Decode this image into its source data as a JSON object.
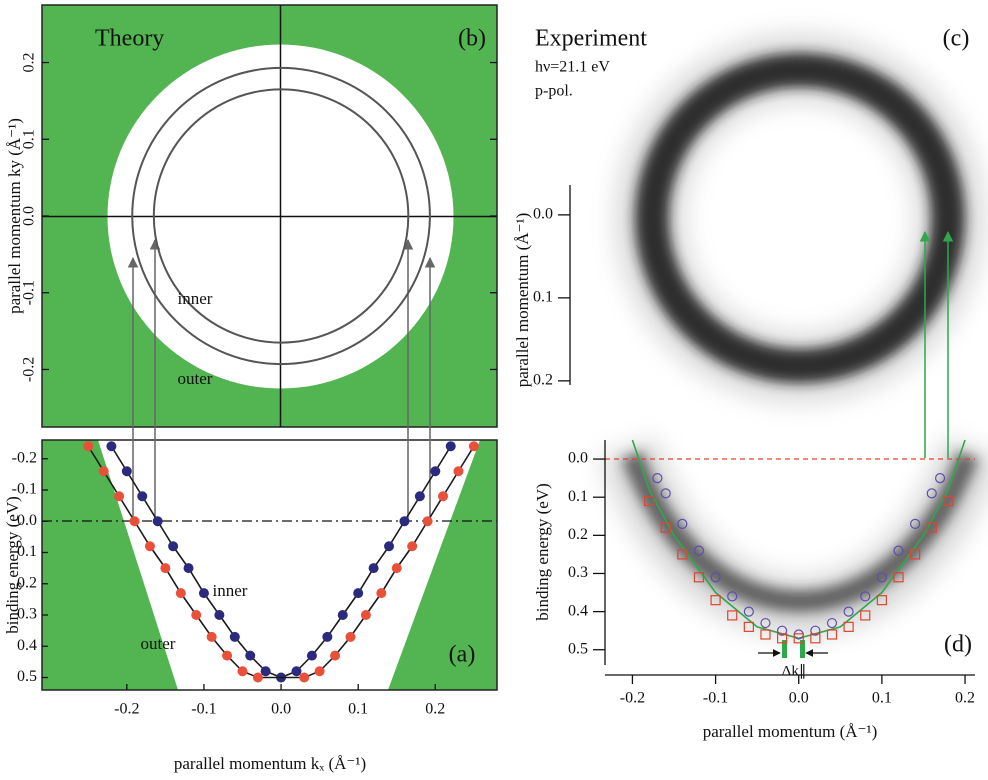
{
  "chart_data": [
    {
      "type": "circles",
      "panel": "(b)",
      "title": "Theory",
      "ylabel": "parallel momentum ky (Å⁻¹)",
      "xlim": [
        -0.31,
        0.28
      ],
      "ylim": [
        -0.275,
        0.275
      ],
      "yticks": [
        -0.2,
        -0.1,
        {
          "value": 0,
          "label": "0.0"
        },
        0.1,
        0.2
      ],
      "series": [
        {
          "name": "inner",
          "color": "#555555",
          "radius": 0.165
        },
        {
          "name": "outer",
          "color": "#555555",
          "radius": 0.193
        }
      ]
    },
    {
      "type": "scatter",
      "panel": "(a)",
      "xlabel": "parallel momentum kₓ (Å⁻¹)",
      "ylabel": "binding energy (eV)",
      "xlim": [
        -0.31,
        0.28
      ],
      "ylim": [
        -0.26,
        0.54
      ],
      "y_inverted": true,
      "xticks": [
        -0.2,
        -0.1,
        {
          "value": 0,
          "label": "0.0"
        },
        0.1,
        0.2
      ],
      "yticks": [
        -0.2,
        -0.1,
        {
          "value": 0,
          "label": "0.0"
        },
        0.1,
        0.2,
        0.3,
        0.4,
        0.5
      ],
      "series": [
        {
          "name": "inner",
          "color": "#2b2a7e",
          "marker": "dot",
          "line_color": "#1a1a1a",
          "x": [
            -0.22,
            -0.2,
            -0.18,
            -0.16,
            -0.14,
            -0.12,
            -0.1,
            -0.08,
            -0.06,
            -0.04,
            -0.02,
            0,
            0.02,
            0.04,
            0.06,
            0.08,
            0.1,
            0.12,
            0.14,
            0.16,
            0.18,
            0.2,
            0.22
          ],
          "values": [
            -0.24,
            -0.16,
            -0.08,
            0,
            0.08,
            0.15,
            0.23,
            0.3,
            0.37,
            0.43,
            0.48,
            0.5,
            0.48,
            0.43,
            0.37,
            0.3,
            0.23,
            0.15,
            0.08,
            0,
            -0.08,
            -0.16,
            -0.24
          ]
        },
        {
          "name": "outer",
          "color": "#e8503a",
          "marker": "dot",
          "line_color": "#1a1a1a",
          "x": [
            -0.25,
            -0.23,
            -0.21,
            -0.19,
            -0.17,
            -0.15,
            -0.13,
            -0.11,
            -0.09,
            -0.07,
            -0.05,
            -0.03,
            0.03,
            0.05,
            0.07,
            0.09,
            0.11,
            0.13,
            0.15,
            0.17,
            0.19,
            0.21,
            0.23,
            0.25
          ],
          "values": [
            -0.24,
            -0.16,
            -0.08,
            0,
            0.08,
            0.15,
            0.23,
            0.3,
            0.37,
            0.43,
            0.48,
            0.5,
            0.5,
            0.48,
            0.43,
            0.37,
            0.3,
            0.23,
            0.15,
            0.08,
            0,
            -0.08,
            -0.16,
            -0.24
          ]
        }
      ]
    },
    {
      "type": "image",
      "panel": "(c)",
      "title": "Experiment",
      "subtitle": "hν=21.1 eV",
      "note": "p-pol.",
      "ylabel": "parallel momentum (Å⁻¹)",
      "ylim": [
        -0.036,
        0.205
      ],
      "y_inverted": true,
      "yticks": [
        {
          "value": 0,
          "label": "0.0"
        },
        0.1,
        0.2
      ]
    },
    {
      "type": "scatter",
      "panel": "(d)",
      "xlabel": "parallel momentum (Å⁻¹)",
      "ylabel": "binding energy (eV)",
      "annotation": "Δk∥",
      "xlim": [
        -0.233,
        0.212
      ],
      "ylim": [
        -0.05,
        0.54
      ],
      "y_inverted": true,
      "xticks": [
        -0.2,
        -0.1,
        {
          "value": 0,
          "label": "0.0"
        },
        0.1,
        0.2
      ],
      "yticks": [
        {
          "value": 0,
          "label": "0.0"
        },
        0.1,
        0.2,
        0.3,
        0.4,
        0.5
      ],
      "series": [
        {
          "color": "#2ea84a",
          "marker": "line",
          "x": [
            -0.2,
            -0.18,
            -0.15,
            -0.1,
            -0.05,
            0,
            0.05,
            0.1,
            0.15,
            0.18,
            0.2
          ],
          "values": [
            -0.05,
            0.08,
            0.2,
            0.35,
            0.44,
            0.47,
            0.44,
            0.35,
            0.2,
            0.08,
            -0.05
          ]
        },
        {
          "color": "#5a4fb0",
          "marker": "circle",
          "x": [
            -0.17,
            -0.16,
            -0.14,
            -0.12,
            -0.1,
            -0.08,
            -0.06,
            -0.04,
            -0.02,
            0,
            0.02,
            0.04,
            0.06,
            0.08,
            0.1,
            0.12,
            0.14,
            0.16,
            0.17
          ],
          "values": [
            0.05,
            0.09,
            0.17,
            0.24,
            0.31,
            0.36,
            0.4,
            0.43,
            0.45,
            0.46,
            0.45,
            0.43,
            0.4,
            0.36,
            0.31,
            0.24,
            0.17,
            0.09,
            0.05
          ]
        },
        {
          "color": "#e0442e",
          "marker": "square",
          "x": [
            -0.18,
            -0.16,
            -0.14,
            -0.12,
            -0.1,
            -0.08,
            -0.06,
            -0.04,
            -0.02,
            0,
            0.02,
            0.04,
            0.06,
            0.08,
            0.1,
            0.12,
            0.14,
            0.16,
            0.18
          ],
          "values": [
            0.11,
            0.18,
            0.25,
            0.31,
            0.37,
            0.41,
            0.44,
            0.46,
            0.47,
            0.47,
            0.47,
            0.46,
            0.44,
            0.41,
            0.37,
            0.31,
            0.25,
            0.18,
            0.11
          ]
        }
      ]
    }
  ]
}
